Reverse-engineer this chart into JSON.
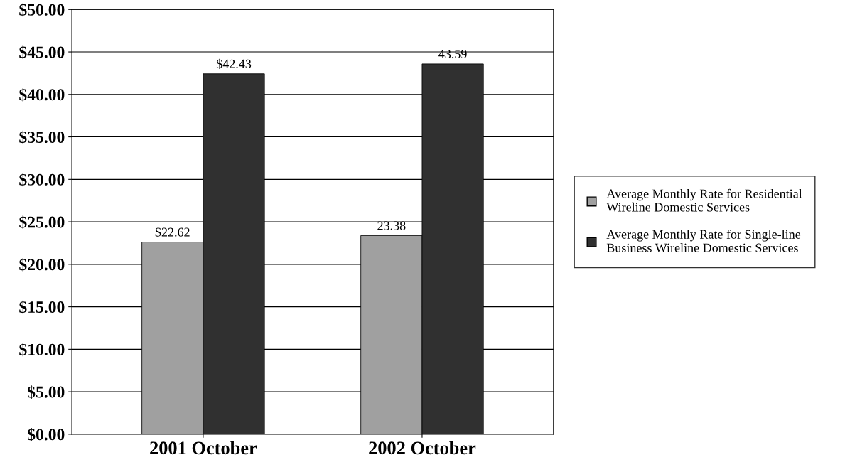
{
  "chart_data": {
    "type": "bar",
    "categories": [
      "2001 October",
      "2002 October"
    ],
    "series": [
      {
        "name": "Average Monthly Rate for Residential Wireline Domestic Services",
        "color": "#a0a0a0",
        "values": [
          22.62,
          23.38
        ],
        "value_labels": [
          "$22.62",
          "23.38"
        ]
      },
      {
        "name": "Average Monthly Rate for Single-line Business Wireline Domestic Services",
        "color": "#303030",
        "values": [
          42.43,
          43.59
        ],
        "value_labels": [
          "$42.43",
          "43.59"
        ]
      }
    ],
    "ylim": [
      0,
      50
    ],
    "yticks": [
      {
        "value": 0,
        "label": "$0.00"
      },
      {
        "value": 5,
        "label": "$5.00"
      },
      {
        "value": 10,
        "label": "$10.00"
      },
      {
        "value": 15,
        "label": "$15.00"
      },
      {
        "value": 20,
        "label": "$20.00"
      },
      {
        "value": 25,
        "label": "$25.00"
      },
      {
        "value": 30,
        "label": "$30.00"
      },
      {
        "value": 35,
        "label": "$35.00"
      },
      {
        "value": 40,
        "label": "$40.00"
      },
      {
        "value": 45,
        "label": "$45.00"
      },
      {
        "value": 50,
        "label": "$50.00"
      }
    ],
    "grid": "y",
    "legend": "right"
  }
}
